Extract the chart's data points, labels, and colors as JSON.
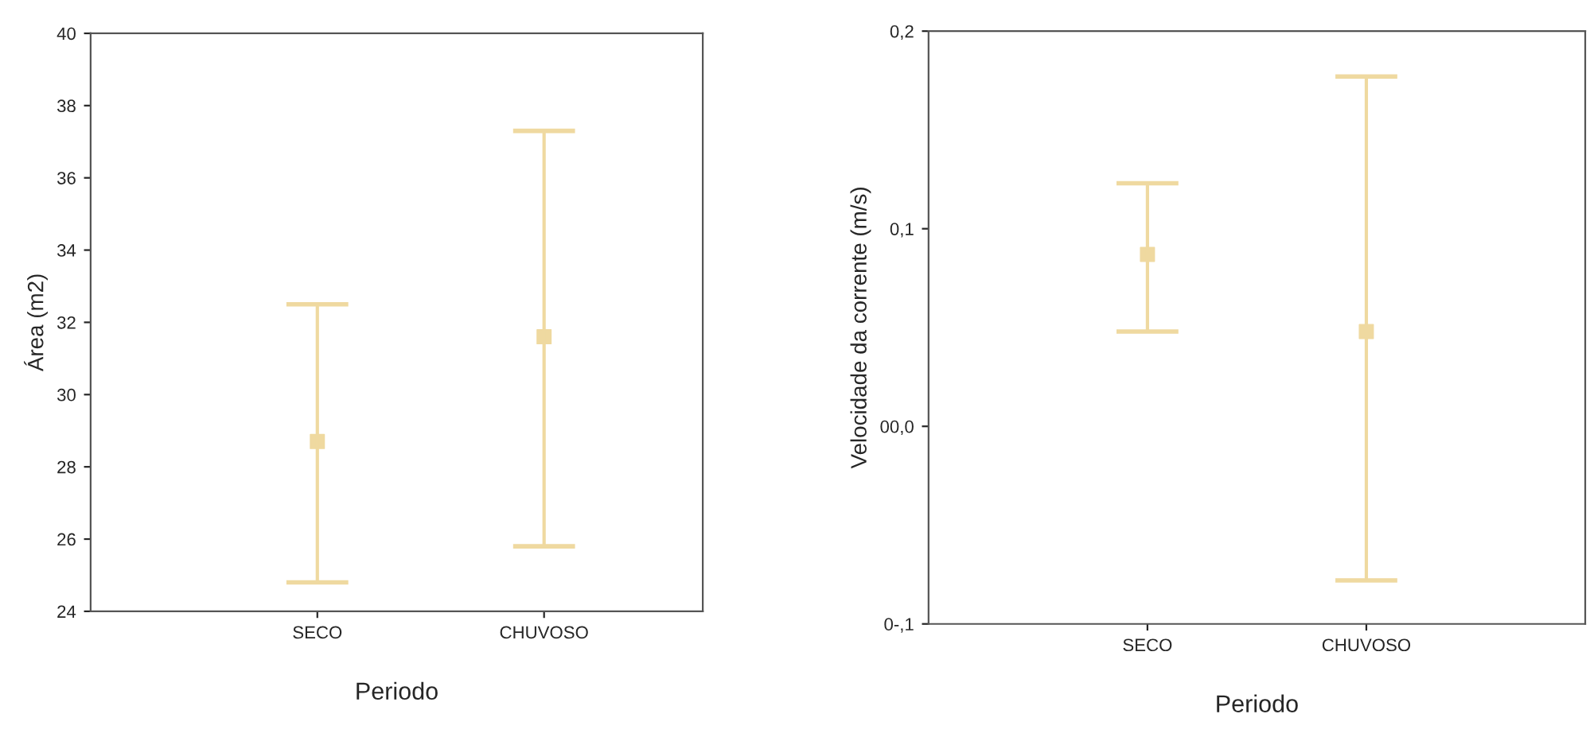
{
  "chart_data": [
    {
      "type": "scatter",
      "xlabel": "Periodo",
      "ylabel": "Área (m2)",
      "categories": [
        "SECO",
        "CHUVOSO"
      ],
      "color": "#efd9a0",
      "values": [
        28.7,
        31.6
      ],
      "errors": [
        [
          24.8,
          32.5
        ],
        [
          25.8,
          37.3
        ]
      ],
      "ylim": [
        24,
        40
      ],
      "yticks": [
        24,
        26,
        28,
        30,
        32,
        34,
        36,
        38,
        40
      ],
      "marker": "square",
      "grid": false,
      "legend": false
    },
    {
      "type": "scatter",
      "xlabel": "Periodo",
      "ylabel": "Velocidade da corrente (m/s)",
      "categories": [
        "SECO",
        "CHUVOSO"
      ],
      "color": "#efd9a0",
      "values": [
        0.087,
        0.048
      ],
      "errors": [
        [
          0.048,
          0.123
        ],
        [
          -0.078,
          0.177
        ]
      ],
      "ylim": [
        -0.1,
        0.2
      ],
      "yticks": [
        {
          "value": -0.1,
          "label": "0-,1"
        },
        {
          "value": 0.0,
          "label": "00,0"
        },
        {
          "value": 0.1,
          "label": "0,1"
        },
        {
          "value": 0.2,
          "label": "0,2"
        }
      ],
      "marker": "square",
      "grid": false,
      "legend": false
    }
  ]
}
